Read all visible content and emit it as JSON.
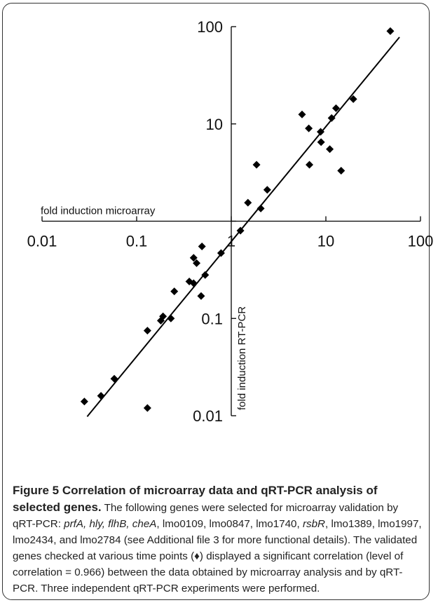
{
  "chart_data": {
    "type": "scatter",
    "xlabel": "fold induction microarray",
    "ylabel": "fold induction RT-PCR",
    "xscale": "log",
    "yscale": "log",
    "xlim": [
      0.01,
      100
    ],
    "ylim": [
      0.01,
      100
    ],
    "x_ticks": [
      0.01,
      0.1,
      1,
      10,
      100
    ],
    "x_tick_labels": [
      "0.01",
      "0.1",
      "1",
      "10",
      "100"
    ],
    "y_ticks": [
      0.01,
      0.1,
      1,
      10,
      100
    ],
    "y_tick_labels": [
      "0.01",
      "0.1",
      "1",
      "10",
      "100"
    ],
    "marker": "diamond",
    "grid": false,
    "points": [
      {
        "x": 0.028,
        "y": 0.014
      },
      {
        "x": 0.042,
        "y": 0.016
      },
      {
        "x": 0.058,
        "y": 0.024
      },
      {
        "x": 0.13,
        "y": 0.012
      },
      {
        "x": 0.13,
        "y": 0.075
      },
      {
        "x": 0.18,
        "y": 0.095
      },
      {
        "x": 0.19,
        "y": 0.105
      },
      {
        "x": 0.23,
        "y": 0.1
      },
      {
        "x": 0.25,
        "y": 0.19
      },
      {
        "x": 0.36,
        "y": 0.24
      },
      {
        "x": 0.4,
        "y": 0.23
      },
      {
        "x": 0.4,
        "y": 0.42
      },
      {
        "x": 0.43,
        "y": 0.37
      },
      {
        "x": 0.48,
        "y": 0.17
      },
      {
        "x": 0.49,
        "y": 0.55
      },
      {
        "x": 0.53,
        "y": 0.28
      },
      {
        "x": 0.78,
        "y": 0.47
      },
      {
        "x": 1.25,
        "y": 0.8
      },
      {
        "x": 1.5,
        "y": 1.55
      },
      {
        "x": 1.85,
        "y": 3.8
      },
      {
        "x": 2.05,
        "y": 1.35
      },
      {
        "x": 2.4,
        "y": 2.1
      },
      {
        "x": 5.6,
        "y": 12.5
      },
      {
        "x": 6.6,
        "y": 9.0
      },
      {
        "x": 6.7,
        "y": 3.8
      },
      {
        "x": 8.8,
        "y": 8.3
      },
      {
        "x": 8.9,
        "y": 6.5
      },
      {
        "x": 11.0,
        "y": 5.5
      },
      {
        "x": 11.5,
        "y": 11.5
      },
      {
        "x": 12.8,
        "y": 14.5
      },
      {
        "x": 14.5,
        "y": 3.3
      },
      {
        "x": 19.5,
        "y": 18.0
      },
      {
        "x": 48.0,
        "y": 90.0
      }
    ],
    "trendline": {
      "x": [
        0.03,
        60
      ],
      "y": [
        0.0098,
        78
      ]
    }
  },
  "caption": {
    "title": "Figure 5 Correlation of microarray data and qRT-PCR analysis of selected genes.",
    "body_1": " The following genes were selected for microarray validation by qRT-PCR: ",
    "body_italic": "prfA, hly, flhB, cheA",
    "body_2": ", lmo0109, lmo0847, lmo1740, ",
    "body_italic_2": "rsbR",
    "body_3": ", lmo1389, lmo1997, lmo2434, and lmo2784 (see Additional file 3 for more functional details). The validated genes checked at various time points (♦) displayed a significant correlation (level of correlation = 0.966) between the data obtained by microarray analysis and by qRT-PCR. Three independent qRT-PCR experiments were performed."
  }
}
